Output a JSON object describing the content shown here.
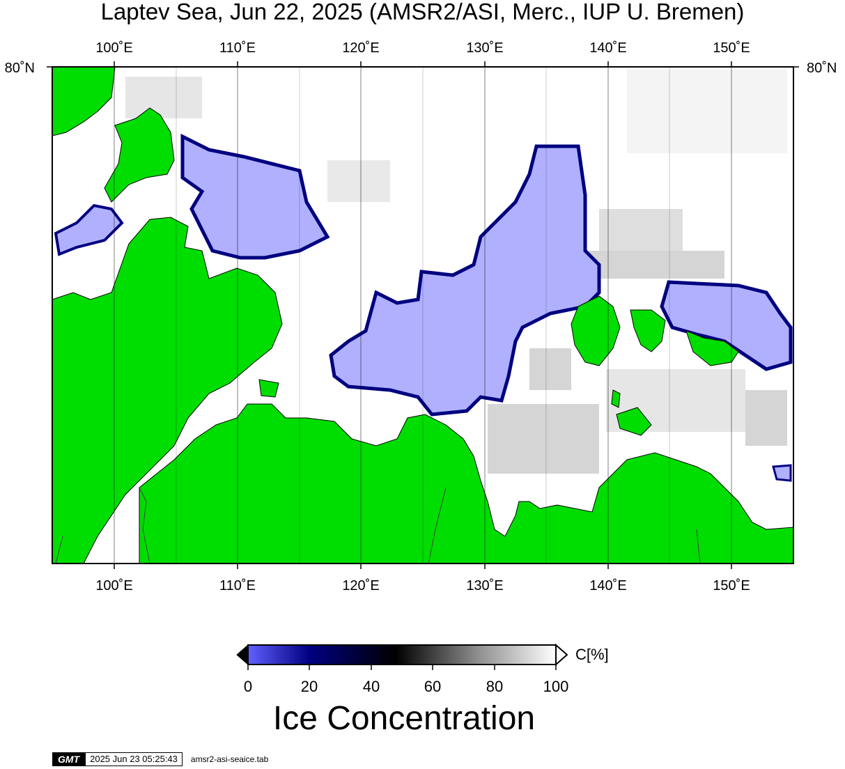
{
  "title": "Laptev Sea, Jun 22, 2025 (AMSR2/ASI, Merc., IUP U. Bremen)",
  "map": {
    "lon_ticks": [
      "100˚E",
      "110˚E",
      "120˚E",
      "130˚E",
      "140˚E",
      "150˚E"
    ],
    "lat_label": "80˚N",
    "lon_range": [
      95,
      155
    ],
    "colors": {
      "land": "#00dd00",
      "ice_low": "#b0b0ff",
      "open_water": "#ffffff",
      "ice_edge": "#000080"
    }
  },
  "colorbar": {
    "label": "C[%]",
    "ticks": [
      "0",
      "20",
      "40",
      "60",
      "80",
      "100"
    ],
    "range": [
      0,
      100
    ]
  },
  "subtitle": "Ice Concentration",
  "footer": {
    "logo": "GMT",
    "timestamp": "2025 Jun 23 05:25:43",
    "file": "amsr2-asi-seaice.tab"
  }
}
